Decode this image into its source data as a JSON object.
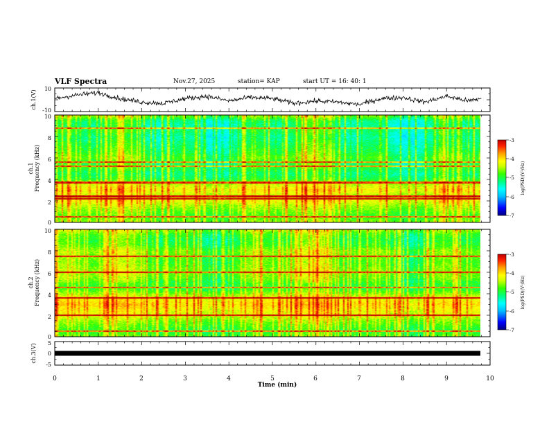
{
  "header": {
    "title": "VLF Spectra",
    "date": "Nov.27, 2025",
    "station": "station= KAP",
    "start_ut": "start  UT  =   16: 40: 1"
  },
  "colors": {
    "colormap": [
      "#000080",
      "#0000ff",
      "#00bfff",
      "#00ffff",
      "#00ff80",
      "#33ff00",
      "#ccff00",
      "#ffff00",
      "#ffa000",
      "#ff2000",
      "#c00000"
    ]
  },
  "chart_data": [
    {
      "type": "line",
      "name": "ch1-waveform",
      "ylabel": "ch.1(V)",
      "ylim": [
        -10,
        10
      ],
      "yticks": [
        "10",
        "-10"
      ],
      "xlim": [
        0,
        10
      ],
      "trend_x": [
        0,
        0.5,
        1,
        1.5,
        2,
        2.5,
        3,
        3.5,
        4,
        4.5,
        5,
        5.5,
        6,
        6.5,
        7,
        7.5,
        8,
        8.5,
        9,
        9.5,
        9.8
      ],
      "trend_y": [
        1,
        4,
        6,
        1,
        -2,
        -3,
        1,
        3,
        -1,
        2,
        1,
        -3,
        -1,
        -2,
        -4,
        1,
        2,
        -2,
        3,
        -1,
        1
      ],
      "noise_amplitude_v": 3.5
    },
    {
      "type": "heatmap",
      "name": "ch1-spectrogram",
      "ylabel": "ch.1\nFrequency (kHz)",
      "xlim": [
        0,
        9.8
      ],
      "ylim": [
        0,
        10
      ],
      "yticks": [
        "0",
        "2",
        "4",
        "6",
        "8",
        "10"
      ],
      "background_levels": {
        "freq_khz": [
          0,
          0.5,
          1,
          1.5,
          2,
          2.5,
          3,
          3.5,
          4,
          4.5,
          5,
          5.5,
          6,
          6.5,
          7,
          7.5,
          8,
          8.5,
          9,
          9.5,
          10
        ],
        "log_psd": [
          -4.6,
          -4.9,
          -4.7,
          -4.5,
          -4.2,
          -4.4,
          -4.1,
          -4.4,
          -5.0,
          -5.2,
          -5.0,
          -5.1,
          -4.8,
          -5.0,
          -5.1,
          -5.2,
          -5.3,
          -5.1,
          -5.3,
          -5.2,
          -4.6
        ]
      },
      "horizontal_lines_khz": [
        0.5,
        2.2,
        2.4,
        3.7,
        5.2,
        5.6,
        8.8
      ],
      "sferic_density": 0.35,
      "colorbar": {
        "label": "log(PSD)(V²/Hz)",
        "range": [
          -7,
          -3
        ],
        "ticks": [
          "-3",
          "-4",
          "-5",
          "-6",
          "-7"
        ]
      }
    },
    {
      "type": "heatmap",
      "name": "ch2-spectrogram",
      "ylabel": "ch.2\nFrequency (kHz)",
      "xlim": [
        0,
        9.8
      ],
      "ylim": [
        0,
        10
      ],
      "yticks": [
        "0",
        "2",
        "4",
        "6",
        "8",
        "10"
      ],
      "background_levels": {
        "freq_khz": [
          0,
          0.5,
          1,
          1.5,
          2,
          2.5,
          3,
          3.5,
          4,
          4.5,
          5,
          5.5,
          6,
          6.5,
          7,
          7.5,
          8,
          8.5,
          9,
          9.5,
          10
        ],
        "log_psd": [
          -4.8,
          -5.0,
          -4.8,
          -4.6,
          -4.3,
          -4.2,
          -4.0,
          -4.2,
          -4.6,
          -5.0,
          -4.9,
          -4.7,
          -4.6,
          -4.7,
          -4.8,
          -4.7,
          -4.6,
          -4.9,
          -5.0,
          -4.9,
          -4.5
        ]
      },
      "horizontal_lines_khz": [
        0.5,
        2.0,
        3.6,
        4.6,
        6.0,
        7.5
      ],
      "sferic_density": 0.4,
      "colorbar": {
        "label": "log(PSD)(V²/Hz)",
        "range": [
          -7,
          -3
        ],
        "ticks": [
          "-3",
          "-4",
          "-5",
          "-6",
          "-7"
        ]
      }
    },
    {
      "type": "line",
      "name": "ch3-voltage",
      "ylabel": "ch.3(V)",
      "ylim": [
        -5,
        5
      ],
      "yticks": [
        "5",
        "0",
        "-5"
      ],
      "xlim": [
        0,
        10
      ],
      "value_v": 0,
      "xlabel": "Time  (min)",
      "xticks": [
        "0",
        "1",
        "2",
        "3",
        "4",
        "5",
        "6",
        "7",
        "8",
        "9",
        "10"
      ]
    }
  ]
}
